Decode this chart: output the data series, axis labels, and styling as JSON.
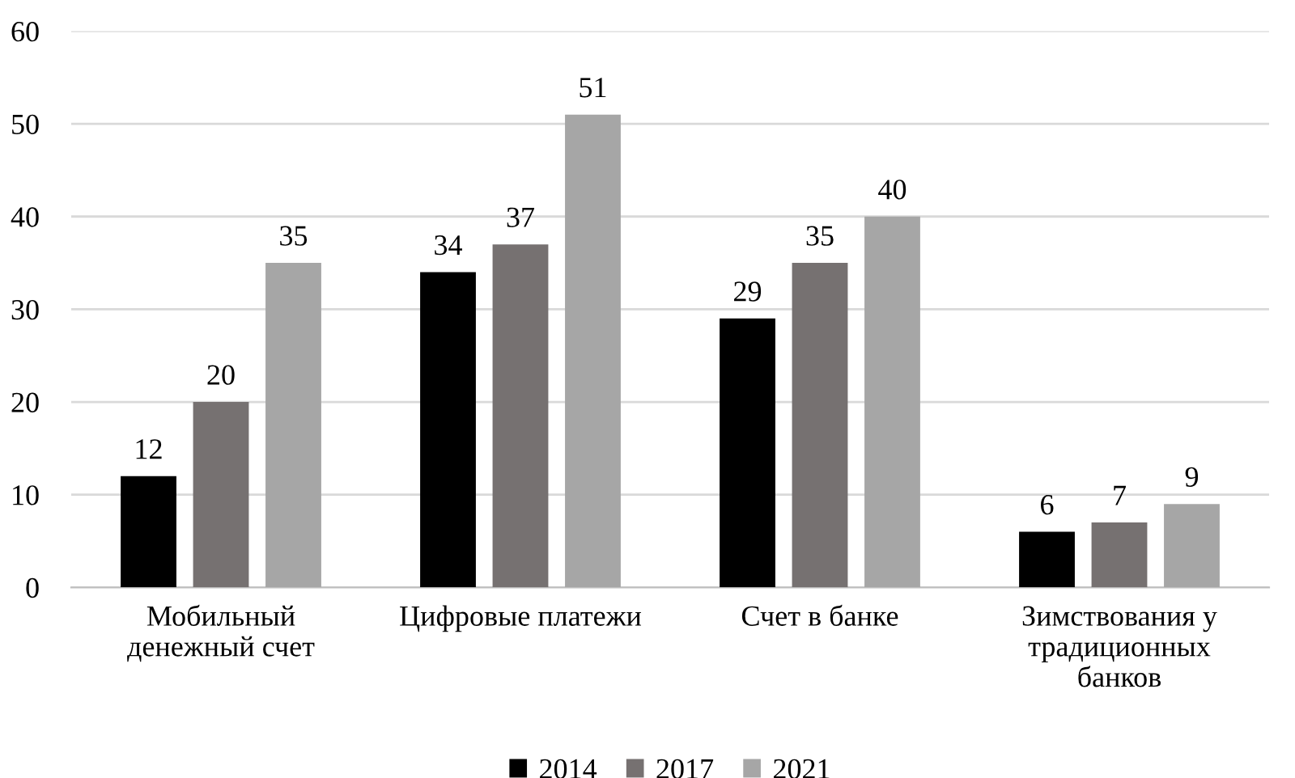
{
  "chart_data": {
    "type": "bar",
    "categories": [
      "Мобильный\nденежный счет",
      "Цифровые платежи",
      "Счет в банке",
      "Зимствования у\nтрадиционных\nбанков"
    ],
    "series": [
      {
        "name": "2014",
        "color": "#000000",
        "values": [
          12,
          34,
          29,
          6
        ]
      },
      {
        "name": "2017",
        "color": "#767171",
        "values": [
          20,
          37,
          35,
          7
        ]
      },
      {
        "name": "2021",
        "color": "#a6a6a6",
        "values": [
          35,
          51,
          40,
          9
        ]
      }
    ],
    "ylim": [
      0,
      60
    ],
    "yticks": [
      0,
      10,
      20,
      30,
      40,
      50,
      60
    ],
    "grid": "y",
    "legend": "bottom",
    "data_labels": true
  }
}
